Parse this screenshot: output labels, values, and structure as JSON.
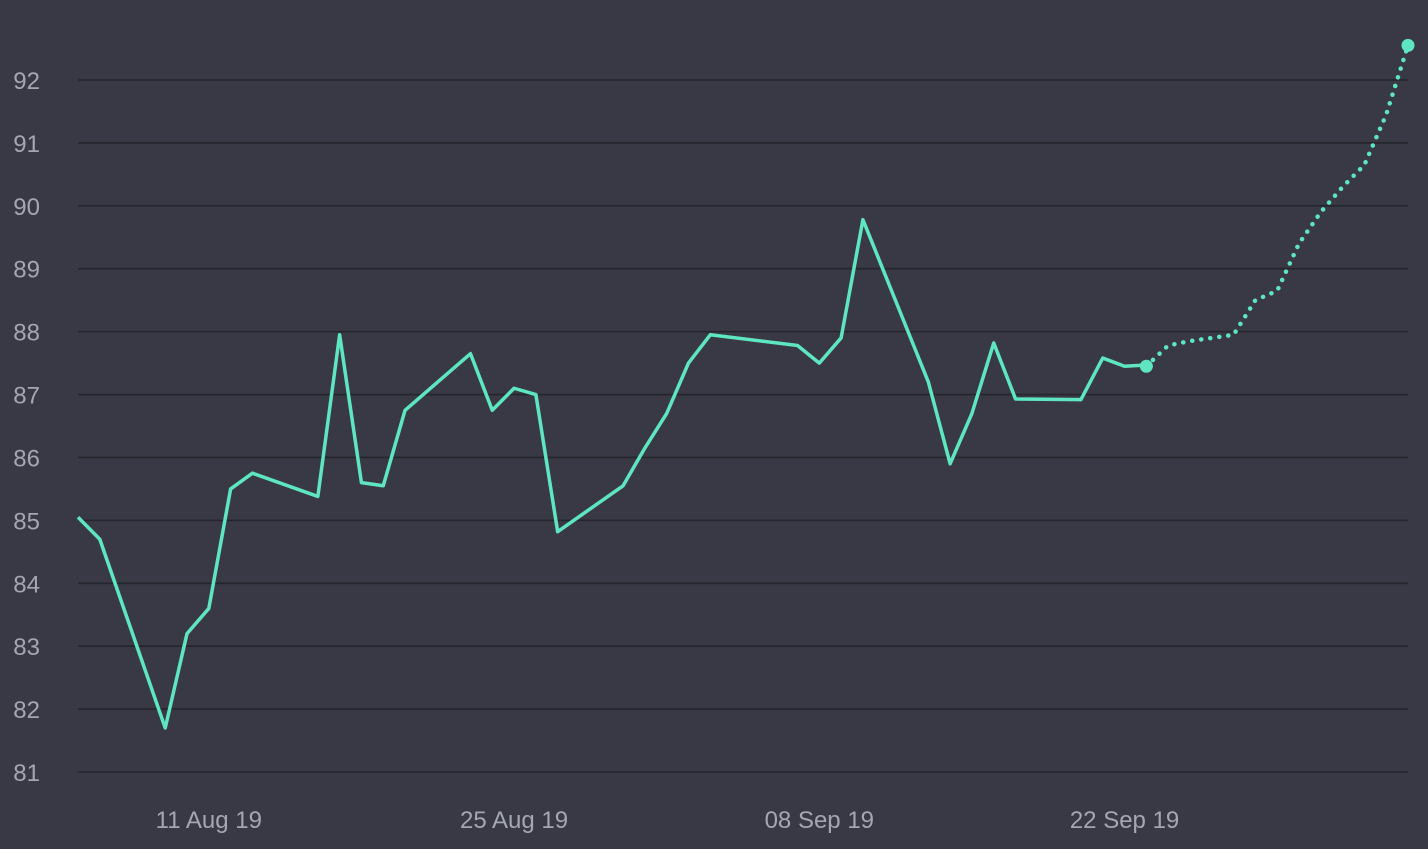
{
  "chart_data": {
    "type": "line",
    "title": "",
    "xlabel": "",
    "ylabel": "",
    "x_start": "2019-08-05",
    "x_end": "2019-10-05",
    "ylim": [
      81,
      92.5
    ],
    "grid": "horizontal",
    "legend": "none",
    "colors": {
      "background": "#393945",
      "grid": "#25252d",
      "line": "#5ee6c0",
      "tick_label": "#a4a6b3"
    },
    "y_ticks": [
      81,
      82,
      83,
      84,
      85,
      86,
      87,
      88,
      89,
      90,
      91,
      92
    ],
    "x_ticks": [
      {
        "date": "2019-08-11",
        "label": "11 Aug 19"
      },
      {
        "date": "2019-08-25",
        "label": "25 Aug 19"
      },
      {
        "date": "2019-09-08",
        "label": "08 Sep 19"
      },
      {
        "date": "2019-09-22",
        "label": "22 Sep 19"
      }
    ],
    "series": [
      {
        "style": "solid",
        "points": [
          {
            "x": "2019-08-05",
            "y": 85.05
          },
          {
            "x": "2019-08-06",
            "y": 84.7
          },
          {
            "x": "2019-08-09",
            "y": 81.7
          },
          {
            "x": "2019-08-10",
            "y": 83.2
          },
          {
            "x": "2019-08-11",
            "y": 83.6
          },
          {
            "x": "2019-08-12",
            "y": 85.5
          },
          {
            "x": "2019-08-13",
            "y": 85.75
          },
          {
            "x": "2019-08-16",
            "y": 85.38
          },
          {
            "x": "2019-08-17",
            "y": 87.95
          },
          {
            "x": "2019-08-18",
            "y": 85.6
          },
          {
            "x": "2019-08-19",
            "y": 85.55
          },
          {
            "x": "2019-08-20",
            "y": 86.75
          },
          {
            "x": "2019-08-23",
            "y": 87.65
          },
          {
            "x": "2019-08-24",
            "y": 86.75
          },
          {
            "x": "2019-08-25",
            "y": 87.1
          },
          {
            "x": "2019-08-26",
            "y": 87.0
          },
          {
            "x": "2019-08-27",
            "y": 84.82
          },
          {
            "x": "2019-08-30",
            "y": 85.55
          },
          {
            "x": "2019-08-31",
            "y": 86.15
          },
          {
            "x": "2019-09-01",
            "y": 86.7
          },
          {
            "x": "2019-09-02",
            "y": 87.5
          },
          {
            "x": "2019-09-03",
            "y": 87.95
          },
          {
            "x": "2019-09-07",
            "y": 87.78
          },
          {
            "x": "2019-09-08",
            "y": 87.5
          },
          {
            "x": "2019-09-09",
            "y": 87.9
          },
          {
            "x": "2019-09-10",
            "y": 89.78
          },
          {
            "x": "2019-09-13",
            "y": 87.2
          },
          {
            "x": "2019-09-14",
            "y": 85.9
          },
          {
            "x": "2019-09-15",
            "y": 86.7
          },
          {
            "x": "2019-09-16",
            "y": 87.82
          },
          {
            "x": "2019-09-17",
            "y": 86.93
          },
          {
            "x": "2019-09-20",
            "y": 86.92
          },
          {
            "x": "2019-09-21",
            "y": 87.58
          },
          {
            "x": "2019-09-22",
            "y": 87.45
          },
          {
            "x": "2019-09-23",
            "y": 87.47
          }
        ]
      },
      {
        "style": "dotted",
        "points": [
          {
            "x": "2019-09-23",
            "y": 87.45
          },
          {
            "x": "2019-09-24",
            "y": 87.78
          },
          {
            "x": "2019-09-25",
            "y": 87.85
          },
          {
            "x": "2019-09-26",
            "y": 87.9
          },
          {
            "x": "2019-09-27",
            "y": 87.95
          },
          {
            "x": "2019-09-28",
            "y": 88.5
          },
          {
            "x": "2019-09-29",
            "y": 88.65
          },
          {
            "x": "2019-09-30",
            "y": 89.4
          },
          {
            "x": "2019-10-01",
            "y": 89.9
          },
          {
            "x": "2019-10-02",
            "y": 90.3
          },
          {
            "x": "2019-10-03",
            "y": 90.65
          },
          {
            "x": "2019-10-04",
            "y": 91.45
          },
          {
            "x": "2019-10-05",
            "y": 92.55
          }
        ]
      }
    ],
    "markers": [
      {
        "x": "2019-09-23",
        "y": 87.45
      },
      {
        "x": "2019-10-05",
        "y": 92.55
      }
    ]
  }
}
